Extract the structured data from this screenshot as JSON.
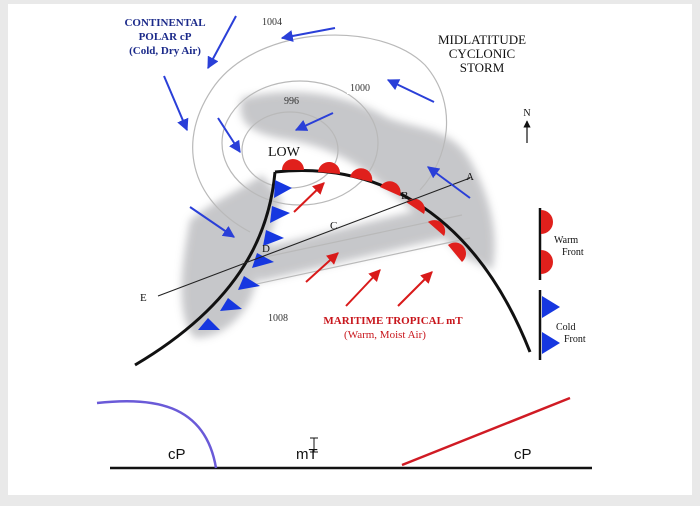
{
  "title": {
    "line1": "MIDLATITUDE",
    "line2": "CYCLONIC",
    "line3": "STORM"
  },
  "continental_polar": {
    "line1": "CONTINENTAL",
    "line2": "POLAR cP",
    "line3": "(Cold, Dry Air)"
  },
  "maritime_tropical": {
    "line1": "MARITIME TROPICAL  mT",
    "line2": "(Warm, Moist Air)"
  },
  "isobars": [
    "1004",
    "1000",
    "996",
    "1008"
  ],
  "low_label": "LOW",
  "points": [
    "A",
    "B",
    "C",
    "D",
    "E"
  ],
  "north_label": "N",
  "legend": {
    "warm_front": {
      "line1": "Warm",
      "line2": "Front"
    },
    "cold_front": {
      "line1": "Cold",
      "line2": "Front"
    }
  },
  "cross_section": {
    "left": "cP",
    "middle": "mT",
    "right": "cP"
  },
  "colors": {
    "background": "#e9e9e9",
    "panel": "#ffffff",
    "cloud": "#c4c5c8",
    "warm_front": "#e0201c",
    "cold_front": "#1637e0",
    "wind_arrow": "#2a3fd8",
    "mt_text": "#c8161c",
    "cp_text": "#1b2a8a",
    "cross_left_front": "#6a5ad8",
    "cross_right_front": "#d01b24"
  }
}
